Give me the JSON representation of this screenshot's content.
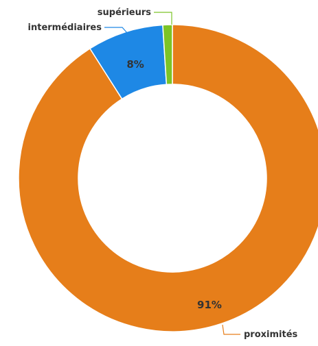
{
  "chart_data": {
    "type": "pie",
    "donut": true,
    "start_angle_deg": 0,
    "direction": "clockwise",
    "slices": [
      {
        "name": "proximités",
        "value": 91,
        "label": "91%",
        "color": "#e67e1a"
      },
      {
        "name": "intermédiaires",
        "value": 8,
        "label": "8%",
        "color": "#1e88e5"
      },
      {
        "name": "supérieurs",
        "value": 1,
        "label": "",
        "color": "#7cc427"
      }
    ]
  }
}
